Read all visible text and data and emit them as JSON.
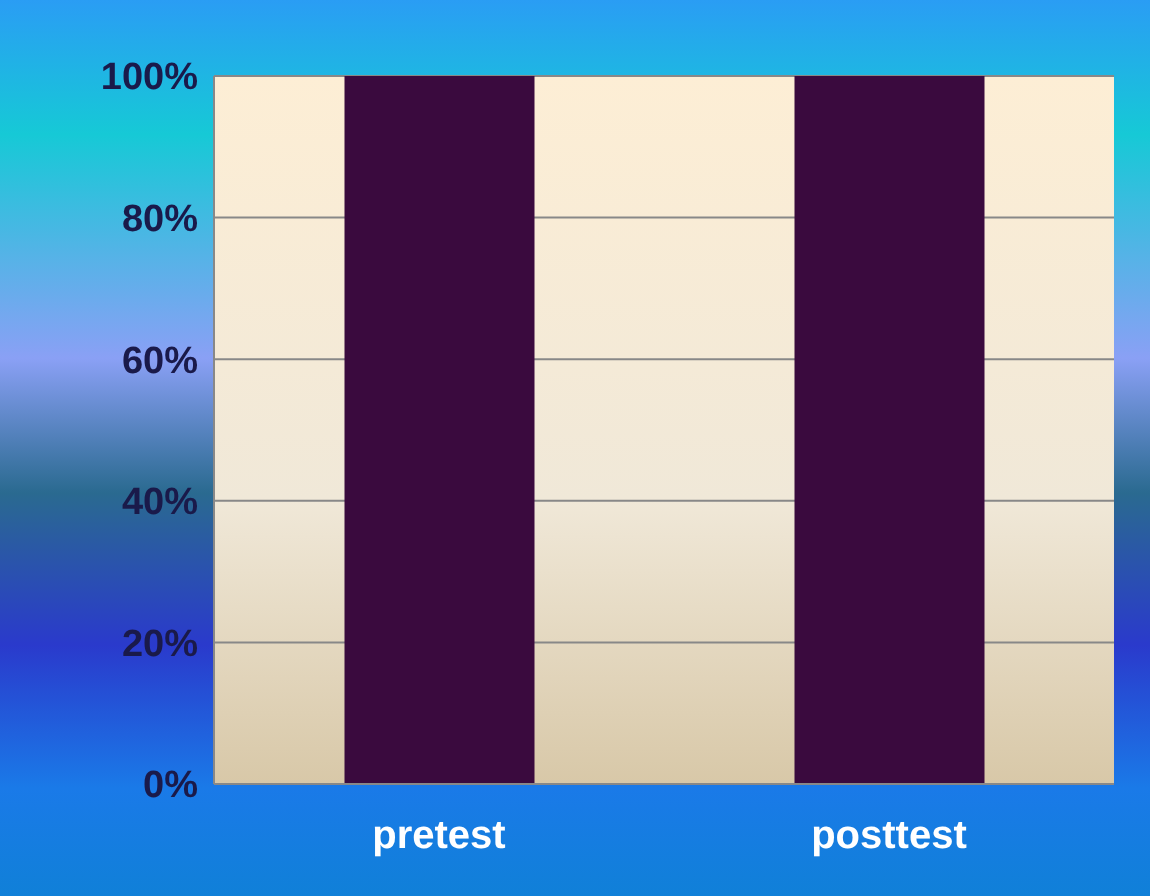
{
  "chart_data": {
    "type": "bar",
    "categories": [
      "pretest",
      "posttest"
    ],
    "values": [
      100,
      100
    ],
    "color": "#3a0a3e",
    "ylim": [
      0,
      100
    ],
    "yticks": [
      {
        "value": 0,
        "label": "0%"
      },
      {
        "value": 20,
        "label": "20%"
      },
      {
        "value": 40,
        "label": "40%"
      },
      {
        "value": 60,
        "label": "60%"
      },
      {
        "value": 80,
        "label": "80%"
      },
      {
        "value": 100,
        "label": "100%"
      }
    ],
    "grid": "y"
  }
}
